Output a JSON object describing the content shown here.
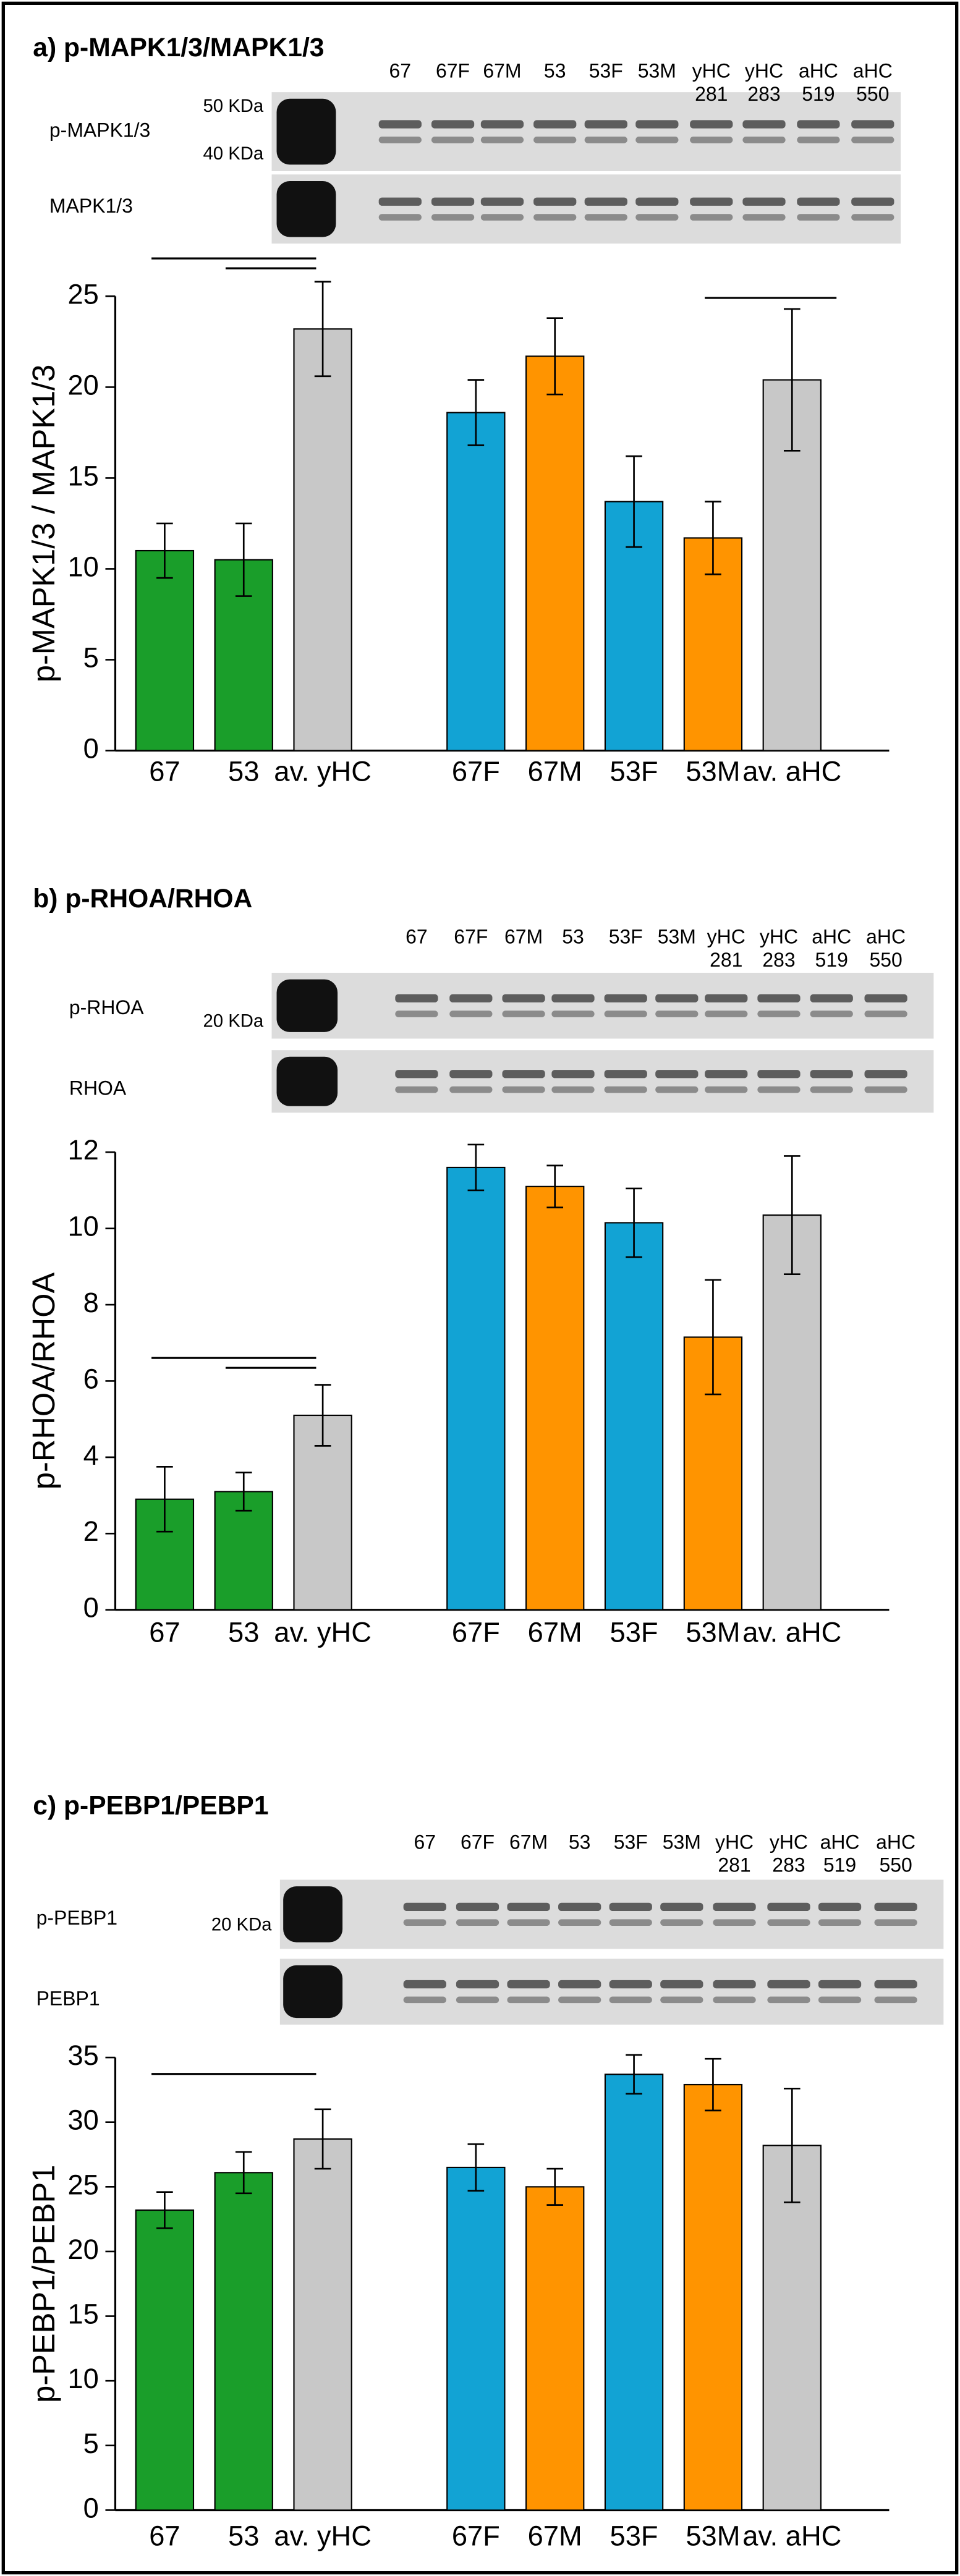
{
  "chart_data": [
    {
      "type": "bar",
      "title": "a) p-MAPK1/3/MAPK1/3",
      "y_label": "p-MAPK1/3 / MAPK1/3",
      "categories": [
        "67",
        "53",
        "av. yHC",
        "67F",
        "67M",
        "53F",
        "53M",
        "av. aHC"
      ],
      "values": [
        11.0,
        10.5,
        23.2,
        18.6,
        21.7,
        13.7,
        11.7,
        20.4
      ],
      "errors": [
        1.5,
        2.0,
        2.6,
        1.8,
        2.1,
        2.5,
        2.0,
        3.9
      ],
      "colors": [
        "#1a9e2a",
        "#1a9e2a",
        "#c8c8c8",
        "#12a3d4",
        "#ff9400",
        "#12a3d4",
        "#ff9400",
        "#c8c8c8"
      ],
      "ylim": [
        0,
        25
      ],
      "yticks": [
        0,
        5,
        10,
        15,
        20,
        25
      ],
      "blot": {
        "lanes": [
          [
            "67"
          ],
          [
            "67F"
          ],
          [
            "67M"
          ],
          [
            "53"
          ],
          [
            "53F"
          ],
          [
            "53M"
          ],
          [
            "yHC",
            "281"
          ],
          [
            "yHC",
            "283"
          ],
          [
            "aHC",
            "519"
          ],
          [
            "aHC",
            "550"
          ]
        ],
        "rows": [
          "p-MAPK1/3",
          "MAPK1/3"
        ],
        "markers": [
          "50 KDa",
          "40 KDa"
        ]
      }
    },
    {
      "type": "bar",
      "title": "b) p-RHOA/RHOA",
      "y_label": "p-RHOA/RHOA",
      "categories": [
        "67",
        "53",
        "av. yHC",
        "67F",
        "67M",
        "53F",
        "53M",
        "av. aHC"
      ],
      "values": [
        2.9,
        3.1,
        5.1,
        11.6,
        11.1,
        10.15,
        7.15,
        10.35
      ],
      "errors": [
        0.85,
        0.5,
        0.8,
        0.6,
        0.55,
        0.9,
        1.5,
        1.55
      ],
      "colors": [
        "#1a9e2a",
        "#1a9e2a",
        "#c8c8c8",
        "#12a3d4",
        "#ff9400",
        "#12a3d4",
        "#ff9400",
        "#c8c8c8"
      ],
      "ylim": [
        0,
        12
      ],
      "yticks": [
        0,
        2,
        4,
        6,
        8,
        10,
        12
      ],
      "blot": {
        "lanes": [
          [
            "67"
          ],
          [
            "67F"
          ],
          [
            "67M"
          ],
          [
            "53"
          ],
          [
            "53F"
          ],
          [
            "53M"
          ],
          [
            "yHC",
            "281"
          ],
          [
            "yHC",
            "283"
          ],
          [
            "aHC",
            "519"
          ],
          [
            "aHC",
            "550"
          ]
        ],
        "rows": [
          "p-RHOA",
          "RHOA"
        ],
        "markers": [
          "20 KDa"
        ]
      }
    },
    {
      "type": "bar",
      "title": "c) p-PEBP1/PEBP1",
      "y_label": "p-PEBP1/PEBP1",
      "categories": [
        "67",
        "53",
        "av. yHC",
        "67F",
        "67M",
        "53F",
        "53M",
        "av. aHC"
      ],
      "values": [
        23.2,
        26.1,
        28.7,
        26.5,
        25.0,
        33.7,
        32.9,
        28.2
      ],
      "errors": [
        1.4,
        1.6,
        2.3,
        1.8,
        1.4,
        1.5,
        2.0,
        4.4
      ],
      "colors": [
        "#1a9e2a",
        "#1a9e2a",
        "#c8c8c8",
        "#12a3d4",
        "#ff9400",
        "#12a3d4",
        "#ff9400",
        "#c8c8c8"
      ],
      "ylim": [
        0,
        35
      ],
      "yticks": [
        0,
        5,
        10,
        15,
        20,
        25,
        30,
        35
      ],
      "blot": {
        "lanes": [
          [
            "67"
          ],
          [
            "67F"
          ],
          [
            "67M"
          ],
          [
            "53"
          ],
          [
            "53F"
          ],
          [
            "53M"
          ],
          [
            "yHC",
            "281"
          ],
          [
            "yHC",
            "283"
          ],
          [
            "aHC",
            "519"
          ],
          [
            "aHC",
            "550"
          ]
        ],
        "rows": [
          "p-PEBP1",
          "PEBP1"
        ],
        "markers": [
          "20 KDa"
        ]
      }
    }
  ]
}
